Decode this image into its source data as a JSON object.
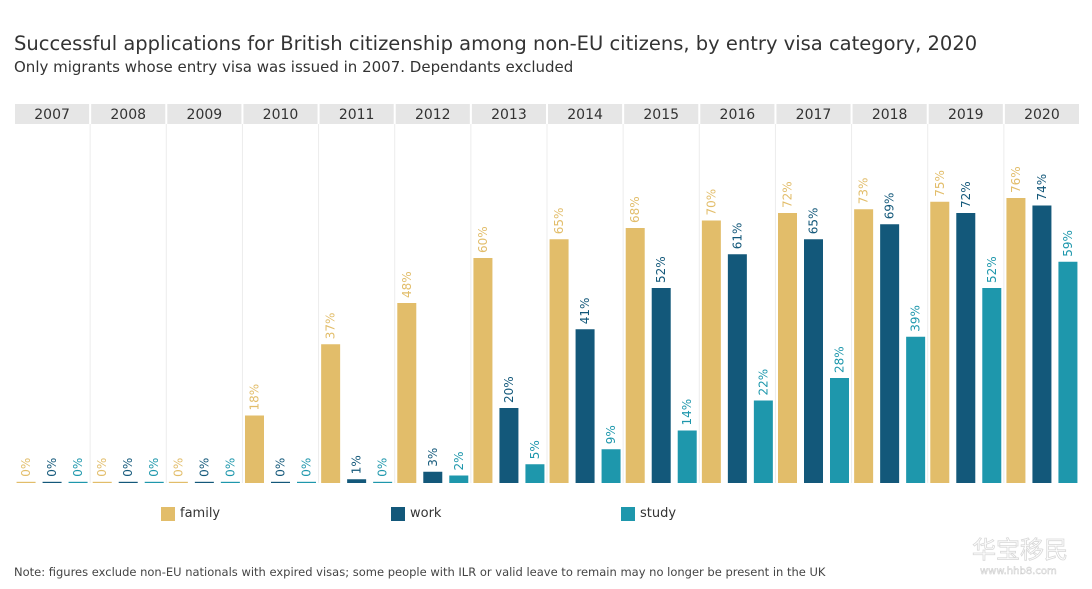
{
  "chart_data": {
    "type": "bar",
    "title": "Successful applications for British citizenship among non-EU citizens, by entry visa category, 2020",
    "subtitle": "Only migrants whose entry visa was issued in 2007. Dependants excluded",
    "categories": [
      "2007",
      "2008",
      "2009",
      "2010",
      "2011",
      "2012",
      "2013",
      "2014",
      "2015",
      "2016",
      "2017",
      "2018",
      "2019",
      "2020"
    ],
    "series": [
      {
        "name": "family",
        "color": "#e2bd6a",
        "values": [
          0,
          0,
          0,
          18,
          37,
          48,
          60,
          65,
          68,
          70,
          72,
          73,
          75,
          76
        ]
      },
      {
        "name": "work",
        "color": "#13587a",
        "values": [
          0,
          0,
          0,
          0,
          1,
          3,
          20,
          41,
          52,
          61,
          65,
          69,
          72,
          74
        ]
      },
      {
        "name": "study",
        "color": "#1e97ac",
        "values": [
          0,
          0,
          0,
          0,
          0,
          2,
          5,
          9,
          14,
          22,
          28,
          39,
          52,
          59
        ]
      }
    ],
    "value_suffix": "%",
    "ylim": [
      0,
      80
    ],
    "legend_position": "bottom",
    "note": "Note: figures exclude non-EU nationals with expired visas; some people with ILR or valid leave to remain may no longer be present in the UK"
  },
  "watermark": {
    "icon": "site-logo-watermark",
    "text": "华宝移民",
    "site": "www.hhb8.com"
  }
}
